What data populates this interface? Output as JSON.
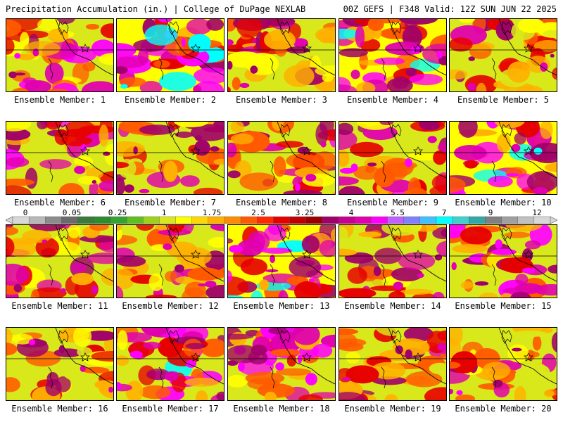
{
  "header": {
    "title": "Precipitation Accumulation (in.) | College of DuPage NEXLAB",
    "run_info": "00Z GEFS | F348 Valid: 12Z SUN JUN 22 2025"
  },
  "member_prefix": "Ensemble Member: ",
  "members": [
    {
      "number": "1",
      "intensity": 0.62
    },
    {
      "number": "2",
      "intensity": 0.82
    },
    {
      "number": "3",
      "intensity": 0.48
    },
    {
      "number": "4",
      "intensity": 0.78
    },
    {
      "number": "5",
      "intensity": 0.42
    },
    {
      "number": "6",
      "intensity": 0.55
    },
    {
      "number": "7",
      "intensity": 0.45
    },
    {
      "number": "8",
      "intensity": 0.6
    },
    {
      "number": "9",
      "intensity": 0.65
    },
    {
      "number": "10",
      "intensity": 0.8
    },
    {
      "number": "11",
      "intensity": 0.5
    },
    {
      "number": "12",
      "intensity": 0.55
    },
    {
      "number": "13",
      "intensity": 0.85
    },
    {
      "number": "14",
      "intensity": 0.42
    },
    {
      "number": "15",
      "intensity": 0.7
    },
    {
      "number": "16",
      "intensity": 0.4
    },
    {
      "number": "17",
      "intensity": 0.72
    },
    {
      "number": "18",
      "intensity": 0.68
    },
    {
      "number": "19",
      "intensity": 0.5
    },
    {
      "number": "20",
      "intensity": 0.52
    }
  ],
  "colorbar": {
    "labels": [
      "0",
      "0.05",
      "0.25",
      "1",
      "1.75",
      "2.5",
      "3.25",
      "4",
      "5.5",
      "7",
      "9",
      "12"
    ],
    "colors": [
      "#d8d8d8",
      "#b8b8b8",
      "#8c8c8c",
      "#6b6b6b",
      "#3a7a3a",
      "#2e8b2e",
      "#34a334",
      "#5fbf1f",
      "#9ed11a",
      "#d9e81a",
      "#ffff00",
      "#ffd800",
      "#ffb000",
      "#ff8c00",
      "#ff5a00",
      "#ff2a00",
      "#e60000",
      "#c00000",
      "#9a0000",
      "#a0006a",
      "#c4008c",
      "#e000b0",
      "#ff00ff",
      "#c060ff",
      "#8080ff",
      "#40c0ff",
      "#00ffff",
      "#40d0d0",
      "#30a8a8",
      "#808080",
      "#a0a0a0",
      "#c0c0c0",
      "#d8d8d8"
    ]
  },
  "map_palette": [
    "#2e8b2e",
    "#5fbf1f",
    "#d9e81a",
    "#ffff00",
    "#ffb000",
    "#ff5a00",
    "#e60000",
    "#a0006a",
    "#e000b0",
    "#ff00ff",
    "#00ffff"
  ]
}
